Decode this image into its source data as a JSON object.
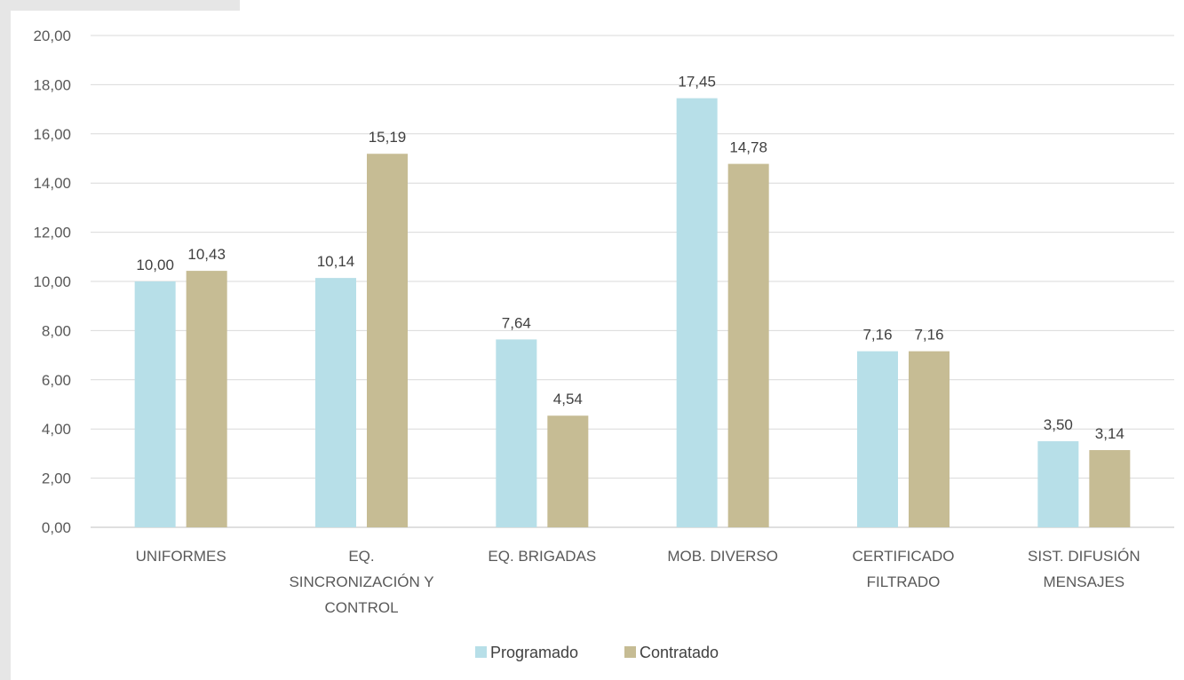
{
  "chart_data": {
    "type": "bar",
    "categories": [
      [
        "UNIFORMES"
      ],
      [
        "EQ.",
        "SINCRONIZACIÓN Y",
        "CONTROL"
      ],
      [
        "EQ. BRIGADAS"
      ],
      [
        "MOB. DIVERSO"
      ],
      [
        "CERTIFICADO",
        "FILTRADO"
      ],
      [
        "SIST. DIFUSIÓN",
        "MENSAJES"
      ]
    ],
    "series": [
      {
        "name": "Programado",
        "color": "#b7dfe8",
        "values": [
          10.0,
          10.14,
          7.64,
          17.45,
          7.16,
          3.5
        ],
        "labels": [
          "10,00",
          "10,14",
          "7,64",
          "17,45",
          "7,16",
          "3,50"
        ]
      },
      {
        "name": "Contratado",
        "color": "#c6bc94",
        "values": [
          10.43,
          15.19,
          4.54,
          14.78,
          7.16,
          3.14
        ],
        "labels": [
          "10,43",
          "15,19",
          "4,54",
          "14,78",
          "7,16",
          "3,14"
        ]
      }
    ],
    "ylim": [
      0,
      20
    ],
    "yticks": [
      "0,00",
      "2,00",
      "4,00",
      "6,00",
      "8,00",
      "10,00",
      "12,00",
      "14,00",
      "16,00",
      "18,00",
      "20,00"
    ],
    "grid": true,
    "legend_position": "bottom"
  }
}
